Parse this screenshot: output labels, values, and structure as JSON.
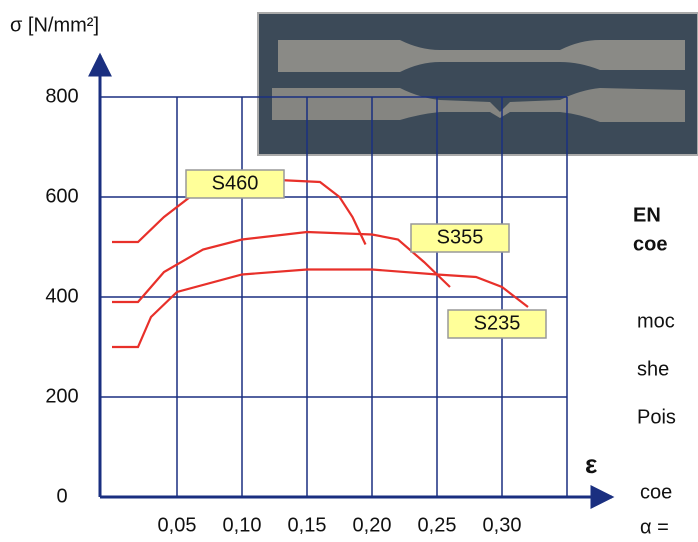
{
  "chart_data": {
    "type": "line",
    "y_label": "σ [N/mm²]",
    "x_label": "ε",
    "xlim": [
      0,
      0.35
    ],
    "ylim": [
      0,
      800
    ],
    "xticks": [
      {
        "value": 0.05,
        "label": "0,05"
      },
      {
        "value": 0.1,
        "label": "0,10"
      },
      {
        "value": 0.15,
        "label": "0,15"
      },
      {
        "value": 0.2,
        "label": "0,20"
      },
      {
        "value": 0.25,
        "label": "0,25"
      },
      {
        "value": 0.3,
        "label": "0,30"
      }
    ],
    "yticks": [
      0,
      200,
      400,
      600,
      800
    ],
    "grid": true,
    "series": [
      {
        "name": "S460",
        "color": "#e8302a",
        "x": [
          0,
          0.02,
          0.04,
          0.06,
          0.08,
          0.12,
          0.16,
          0.175,
          0.185,
          0.195
        ],
        "values": [
          510,
          510,
          560,
          600,
          625,
          635,
          630,
          600,
          560,
          505
        ]
      },
      {
        "name": "S355",
        "color": "#e8302a",
        "x": [
          0,
          0.02,
          0.04,
          0.07,
          0.1,
          0.15,
          0.2,
          0.22,
          0.24,
          0.26
        ],
        "values": [
          390,
          390,
          450,
          495,
          515,
          530,
          525,
          515,
          470,
          420
        ]
      },
      {
        "name": "S235",
        "color": "#e8302a",
        "x": [
          0,
          0.02,
          0.03,
          0.05,
          0.1,
          0.15,
          0.2,
          0.25,
          0.28,
          0.3,
          0.32
        ],
        "values": [
          300,
          300,
          360,
          410,
          445,
          455,
          455,
          445,
          440,
          420,
          380
        ]
      }
    ],
    "side_text": [
      "EN",
      "coe",
      "moc",
      "she",
      "Pois",
      "coe",
      "α ="
    ]
  }
}
